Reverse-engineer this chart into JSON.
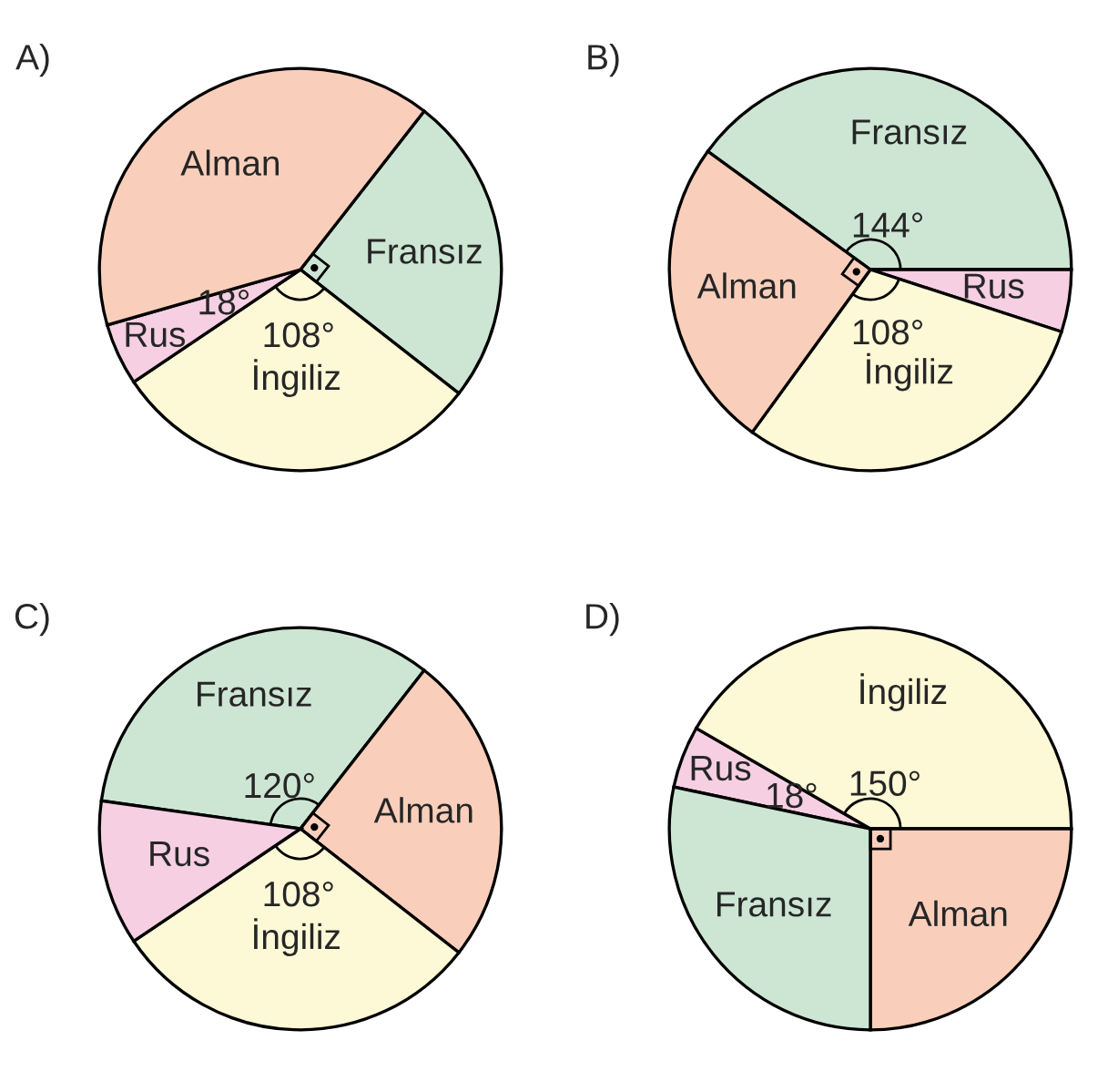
{
  "chart_data": [
    {
      "type": "pie",
      "title": "A)",
      "categories": [
        "Fransız",
        "İngiliz",
        "Rus",
        "Alman"
      ],
      "values": [
        90,
        108,
        18,
        144
      ],
      "colors": [
        "#cde6d4",
        "#fdf8d6",
        "#f6cfe2",
        "#f9cfbb"
      ],
      "value_labels": [
        null,
        "108°",
        "18°",
        null
      ]
    },
    {
      "type": "pie",
      "title": "B)",
      "categories": [
        "Fransız",
        "Rus",
        "İngiliz",
        "Alman"
      ],
      "values": [
        144,
        18,
        108,
        90
      ],
      "colors": [
        "#cde6d4",
        "#f6cfe2",
        "#fdf8d6",
        "#f9cfbb"
      ],
      "value_labels": [
        "144°",
        null,
        "108°",
        null
      ]
    },
    {
      "type": "pie",
      "title": "C)",
      "categories": [
        "Fransız",
        "Alman",
        "İngiliz",
        "Rus"
      ],
      "values": [
        120,
        90,
        108,
        42
      ],
      "colors": [
        "#cde6d4",
        "#f9cfbb",
        "#fdf8d6",
        "#f6cfe2"
      ],
      "value_labels": [
        "120°",
        null,
        "108°",
        null
      ]
    },
    {
      "type": "pie",
      "title": "D)",
      "categories": [
        "Rus",
        "İngiliz",
        "Alman",
        "Fransız"
      ],
      "values": [
        18,
        150,
        90,
        102
      ],
      "colors": [
        "#f6cfe2",
        "#fdf8d6",
        "#f9cfbb",
        "#cde6d4"
      ],
      "value_labels": [
        "18°",
        "150°",
        null,
        null
      ]
    }
  ]
}
